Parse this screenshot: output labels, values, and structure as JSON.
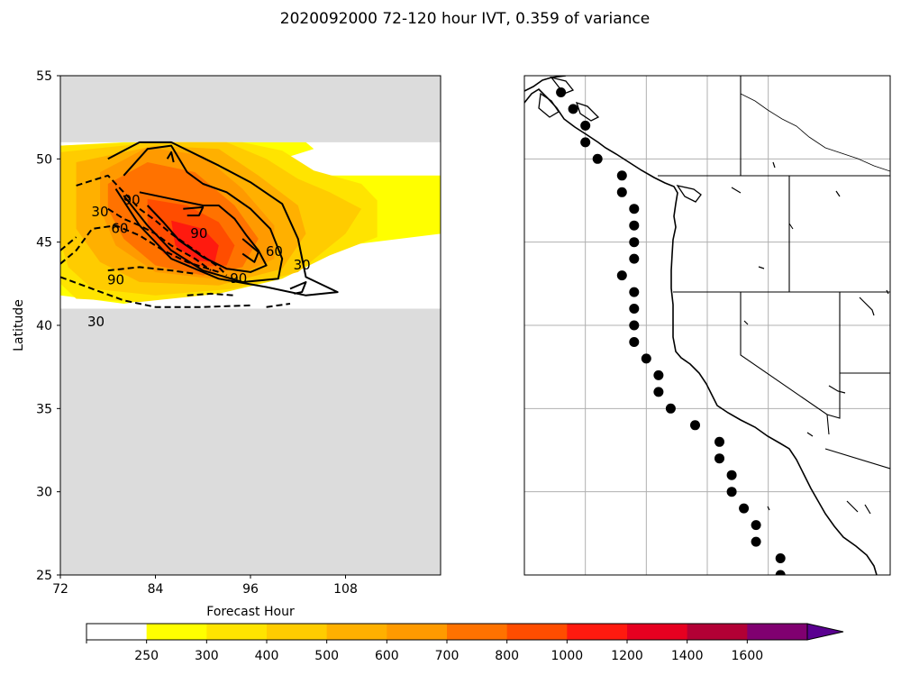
{
  "title": "2020092000 72-120 hour IVT, 0.359 of variance",
  "chart_data": [
    {
      "type": "contour",
      "title": "",
      "xlabel": "Forecast Hour",
      "ylabel": "Latitude",
      "xlim": [
        72,
        120
      ],
      "ylim": [
        25,
        55
      ],
      "xticks": [
        "72",
        "84",
        "96",
        "108"
      ],
      "yticks": [
        "25",
        "30",
        "35",
        "40",
        "45",
        "50",
        "55"
      ],
      "data_band": {
        "lat_min": 41,
        "lat_max": 51
      },
      "missing_color": "#dcdcdc",
      "filled_regions": [
        {
          "level": 250,
          "points": [
            [
              72,
              50.8
            ],
            [
              80,
              51
            ],
            [
              90,
              51
            ],
            [
              103,
              51
            ],
            [
              104,
              50.6
            ],
            [
              100,
              50
            ],
            [
              100,
              49.5
            ],
            [
              104,
              49
            ],
            [
              120,
              49
            ],
            [
              120,
              45.5
            ],
            [
              108,
              44.8
            ],
            [
              100,
              43.2
            ],
            [
              90,
              42
            ],
            [
              80,
              41.3
            ],
            [
              72,
              41.8
            ]
          ]
        },
        {
          "level": 300,
          "points": [
            [
              72,
              50.8
            ],
            [
              82,
              51
            ],
            [
              95,
              51
            ],
            [
              100,
              50.5
            ],
            [
              104,
              49.3
            ],
            [
              110,
              48.5
            ],
            [
              112,
              47.5
            ],
            [
              112,
              45.3
            ],
            [
              106,
              44.2
            ],
            [
              100,
              42.8
            ],
            [
              92,
              41.9
            ],
            [
              82,
              41.4
            ],
            [
              74,
              41.6
            ],
            [
              72,
              42.5
            ]
          ]
        },
        {
          "level": 400,
          "points": [
            [
              72,
              50.4
            ],
            [
              84,
              51
            ],
            [
              93,
              51
            ],
            [
              98,
              50
            ],
            [
              102,
              48.8
            ],
            [
              106,
              48
            ],
            [
              110,
              47
            ],
            [
              108,
              45.5
            ],
            [
              102,
              43.2
            ],
            [
              94,
              42.2
            ],
            [
              84,
              41.8
            ],
            [
              76,
              42.2
            ],
            [
              73,
              43.5
            ],
            [
              72,
              45
            ]
          ]
        },
        {
          "level": 500,
          "points": [
            [
              74,
              49.8
            ],
            [
              84,
              50.8
            ],
            [
              92,
              50.6
            ],
            [
              97,
              49
            ],
            [
              102,
              47.2
            ],
            [
              103,
              45.5
            ],
            [
              100,
              43.4
            ],
            [
              92,
              42.4
            ],
            [
              82,
              42.6
            ],
            [
              77,
              43.8
            ],
            [
              74,
              45.8
            ]
          ]
        },
        {
          "level": 600,
          "points": [
            [
              77,
              49.2
            ],
            [
              83,
              50.7
            ],
            [
              90,
              50.2
            ],
            [
              95,
              48.2
            ],
            [
              99,
              46
            ],
            [
              99,
              44
            ],
            [
              93,
              42.7
            ],
            [
              84,
              43.2
            ],
            [
              79,
              44.8
            ],
            [
              77,
              47
            ]
          ]
        },
        {
          "level": 700,
          "points": [
            [
              78,
              48.5
            ],
            [
              83,
              49.8
            ],
            [
              89,
              49.2
            ],
            [
              94,
              47.2
            ],
            [
              97,
              45.2
            ],
            [
              95,
              43.5
            ],
            [
              90,
              43
            ],
            [
              84,
              43.6
            ],
            [
              80,
              45.2
            ],
            [
              78,
              47
            ]
          ]
        },
        {
          "level": 800,
          "points": [
            [
              83,
              47.6
            ],
            [
              88,
              47.2
            ],
            [
              92,
              46.2
            ],
            [
              94,
              44.8
            ],
            [
              93,
              43.6
            ],
            [
              89,
              43.5
            ],
            [
              85,
              44.3
            ],
            [
              83,
              45.8
            ]
          ]
        },
        {
          "level": 1000,
          "points": [
            [
              86,
              46.3
            ],
            [
              90,
              45.8
            ],
            [
              92,
              44.8
            ],
            [
              91.5,
              43.8
            ],
            [
              89,
              43.9
            ],
            [
              86.5,
              44.8
            ]
          ]
        }
      ],
      "contours": [
        {
          "style": "solid",
          "label": "90",
          "points": [
            [
              82,
              48
            ],
            [
              86,
              47.6
            ],
            [
              90,
              47.2
            ],
            [
              92,
              47.2
            ],
            [
              94,
              46.4
            ],
            [
              95.5,
              45.4
            ],
            [
              97,
              44.5
            ],
            [
              98,
              43.6
            ],
            [
              96,
              43.2
            ],
            [
              93,
              43.4
            ],
            [
              90,
              44.1
            ],
            [
              87,
              45.1
            ],
            [
              85,
              46.2
            ],
            [
              83,
              47.2
            ]
          ]
        },
        {
          "style": "solid",
          "label": "60",
          "points": [
            [
              80,
              49
            ],
            [
              83,
              50.6
            ],
            [
              86,
              50.8
            ],
            [
              88,
              49.2
            ],
            [
              90,
              48.5
            ],
            [
              93,
              48
            ],
            [
              96,
              47
            ],
            [
              98.5,
              45.8
            ],
            [
              100,
              44
            ],
            [
              99.5,
              42.8
            ],
            [
              95,
              42.6
            ],
            [
              90,
              43.3
            ],
            [
              86,
              44.5
            ],
            [
              83,
              46
            ],
            [
              80,
              47.8
            ]
          ]
        },
        {
          "style": "solid",
          "label": "30",
          "points": [
            [
              78,
              50
            ],
            [
              82,
              51
            ],
            [
              86,
              51
            ],
            [
              92,
              49.6
            ],
            [
              96,
              48.6
            ],
            [
              100,
              47.3
            ],
            [
              102,
              45.2
            ],
            [
              103,
              42.9
            ],
            [
              107,
              42
            ],
            [
              103,
              41.8
            ],
            [
              98,
              42.3
            ],
            [
              92,
              42.8
            ],
            [
              86,
              44
            ],
            [
              82,
              46
            ],
            [
              79,
              48.2
            ]
          ]
        },
        {
          "style": "solid",
          "label": "",
          "points": [
            [
              87.5,
              47
            ],
            [
              90,
              47.1
            ],
            [
              89.5,
              46.6
            ],
            [
              88,
              46.6
            ]
          ]
        },
        {
          "style": "solid",
          "label": "",
          "points": [
            [
              95,
              45.2
            ],
            [
              97,
              44.4
            ],
            [
              96.5,
              43.8
            ],
            [
              95,
              44.3
            ]
          ]
        },
        {
          "style": "solid",
          "label": "",
          "points": [
            [
              101,
              42.2
            ],
            [
              103,
              42.6
            ],
            [
              102.5,
              42
            ],
            [
              101.5,
              41.9
            ]
          ]
        },
        {
          "style": "solid",
          "label": "",
          "points": [
            [
              85.5,
              50
            ],
            [
              86,
              50.4
            ],
            [
              86.3,
              49.8
            ]
          ]
        },
        {
          "style": "dashed",
          "label": "-30",
          "points": [
            [
              74,
              48.4
            ],
            [
              76,
              48.7
            ],
            [
              78,
              49
            ],
            [
              80,
              48
            ],
            [
              82,
              47
            ],
            [
              84,
              46.3
            ],
            [
              86,
              45.5
            ],
            [
              89,
              44.5
            ],
            [
              92,
              43.5
            ],
            [
              93,
              43
            ]
          ]
        },
        {
          "style": "dashed",
          "label": "-60",
          "points": [
            [
              78,
              47
            ],
            [
              80,
              46.4
            ],
            [
              82,
              46
            ],
            [
              84,
              45.5
            ],
            [
              86,
              44.8
            ],
            [
              89,
              44
            ],
            [
              91,
              43.3
            ]
          ]
        },
        {
          "style": "dashed",
          "label": "-90",
          "points": [
            [
              72,
              43.7
            ],
            [
              74,
              44.5
            ],
            [
              76,
              45.8
            ],
            [
              79,
              46
            ],
            [
              82,
              45.4
            ],
            [
              85,
              44.5
            ],
            [
              88,
              43.8
            ],
            [
              90,
              43.5
            ],
            [
              92,
              43.2
            ]
          ]
        },
        {
          "style": "dashed",
          "label": "-30",
          "points": [
            [
              72,
              42.9
            ],
            [
              76,
              42.2
            ],
            [
              80,
              41.5
            ],
            [
              84,
              41.1
            ],
            [
              90,
              41.1
            ],
            [
              96,
              41.2
            ]
          ]
        },
        {
          "style": "dashed",
          "label": "",
          "points": [
            [
              78,
              43.3
            ],
            [
              82,
              43.5
            ],
            [
              86,
              43.3
            ],
            [
              89,
              43.1
            ]
          ]
        },
        {
          "style": "dashed",
          "label": "",
          "points": [
            [
              88,
              41.8
            ],
            [
              91,
              41.9
            ],
            [
              94,
              41.8
            ]
          ]
        },
        {
          "style": "dashed",
          "label": "",
          "points": [
            [
              98,
              41.1
            ],
            [
              101,
              41.3
            ]
          ]
        },
        {
          "style": "dashed",
          "label": "",
          "points": [
            [
              72,
              44.5
            ],
            [
              74,
              45.3
            ]
          ]
        }
      ],
      "contour_labels": [
        {
          "text": "90",
          "x": 81,
          "y": 47.5
        },
        {
          "text": "30",
          "x": 77,
          "y": 46.8
        },
        {
          "text": "60",
          "x": 79.5,
          "y": 45.8
        },
        {
          "text": "90",
          "x": 89.5,
          "y": 45.5
        },
        {
          "text": "60",
          "x": 99,
          "y": 44.4
        },
        {
          "text": "30",
          "x": 102.5,
          "y": 43.6
        },
        {
          "text": "90",
          "x": 79,
          "y": 42.7
        },
        {
          "text": "90",
          "x": 94.5,
          "y": 42.8
        },
        {
          "text": "30",
          "x": 76.5,
          "y": 40.2
        }
      ]
    },
    {
      "type": "map",
      "title": "",
      "region": "US West Coast",
      "lon_range": [
        -135,
        -105
      ],
      "lat_range": [
        25,
        55
      ],
      "gridlines": true,
      "markers": [
        {
          "lon": -132,
          "lat": 54
        },
        {
          "lon": -131,
          "lat": 53
        },
        {
          "lon": -130,
          "lat": 52
        },
        {
          "lon": -130,
          "lat": 51
        },
        {
          "lon": -129,
          "lat": 50
        },
        {
          "lon": -127,
          "lat": 49
        },
        {
          "lon": -127,
          "lat": 48
        },
        {
          "lon": -126,
          "lat": 47
        },
        {
          "lon": -126,
          "lat": 46
        },
        {
          "lon": -126,
          "lat": 45
        },
        {
          "lon": -126,
          "lat": 44
        },
        {
          "lon": -127,
          "lat": 43
        },
        {
          "lon": -126,
          "lat": 42
        },
        {
          "lon": -126,
          "lat": 41
        },
        {
          "lon": -126,
          "lat": 40
        },
        {
          "lon": -126,
          "lat": 39
        },
        {
          "lon": -125,
          "lat": 38
        },
        {
          "lon": -124,
          "lat": 37
        },
        {
          "lon": -124,
          "lat": 36
        },
        {
          "lon": -123,
          "lat": 35
        },
        {
          "lon": -121,
          "lat": 34
        },
        {
          "lon": -119,
          "lat": 33
        },
        {
          "lon": -119,
          "lat": 32
        },
        {
          "lon": -118,
          "lat": 31
        },
        {
          "lon": -118,
          "lat": 30
        },
        {
          "lon": -117,
          "lat": 29
        },
        {
          "lon": -116,
          "lat": 28
        },
        {
          "lon": -116,
          "lat": 27
        },
        {
          "lon": -114,
          "lat": 26
        },
        {
          "lon": -114,
          "lat": 25
        }
      ]
    }
  ],
  "colorbar": {
    "ticks": [
      "250",
      "300",
      "400",
      "500",
      "600",
      "700",
      "800",
      "1000",
      "1200",
      "1400",
      "1600"
    ],
    "colors": [
      "#ffffff",
      "#ffff00",
      "#ffe400",
      "#ffcc00",
      "#ffb000",
      "#ff9a00",
      "#ff7200",
      "#ff4d00",
      "#ff1a0f",
      "#e60020",
      "#b20035",
      "#800070",
      "#5a0090"
    ],
    "extend": "max"
  }
}
